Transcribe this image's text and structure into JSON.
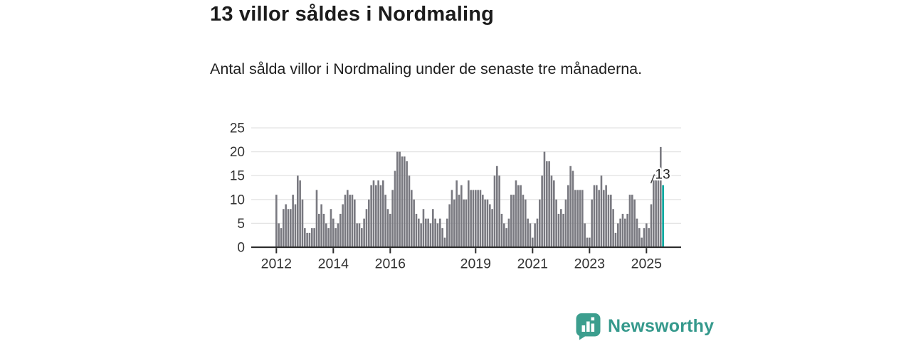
{
  "header": {
    "title": "13 villor såldes i Nordmaling",
    "subtitle": "Antal sålda villor i Nordmaling under de senaste tre månaderna."
  },
  "chart_data": {
    "type": "bar",
    "title": "13 villor såldes i Nordmaling",
    "subtitle": "Antal sålda villor i Nordmaling under de senaste tre månaderna.",
    "x_unit": "month",
    "x_range_note": "monthly bars Jan 2012 - Aug 2025, each bar = villas sold in trailing three months",
    "values": [
      11,
      5,
      4,
      8,
      9,
      8,
      8,
      11,
      9,
      15,
      14,
      10,
      4,
      3,
      3,
      4,
      4,
      12,
      7,
      9,
      7,
      5,
      4,
      8,
      6,
      4,
      5,
      7,
      9,
      11,
      12,
      11,
      11,
      10,
      5,
      5,
      4,
      6,
      8,
      10,
      13,
      14,
      13,
      14,
      13,
      14,
      11,
      8,
      7,
      12,
      16,
      20,
      20,
      19,
      19,
      18,
      15,
      12,
      10,
      7,
      6,
      5,
      8,
      6,
      6,
      5,
      8,
      6,
      5,
      6,
      4,
      2,
      6,
      9,
      12,
      10,
      14,
      11,
      13,
      10,
      10,
      14,
      12,
      12,
      12,
      12,
      12,
      11,
      10,
      10,
      9,
      8,
      15,
      17,
      15,
      7,
      5,
      4,
      6,
      11,
      11,
      14,
      13,
      13,
      11,
      10,
      6,
      5,
      2,
      5,
      6,
      10,
      15,
      20,
      18,
      18,
      15,
      14,
      10,
      7,
      8,
      7,
      10,
      13,
      17,
      16,
      12,
      12,
      12,
      12,
      5,
      2,
      2,
      10,
      13,
      13,
      12,
      15,
      12,
      13,
      11,
      11,
      8,
      3,
      5,
      6,
      7,
      6,
      7,
      11,
      11,
      10,
      6,
      4,
      2,
      4,
      5,
      4,
      9,
      14,
      15,
      14,
      21,
      13
    ],
    "x_tick_labels": [
      "2012",
      "2014",
      "2016",
      "2019",
      "2021",
      "2023",
      "2025"
    ],
    "x_tick_indices": [
      0,
      24,
      48,
      84,
      108,
      132,
      156
    ],
    "y_ticks": [
      0,
      5,
      10,
      15,
      20,
      25
    ],
    "ylim": [
      0,
      25
    ],
    "grid": true,
    "legend": "none",
    "annotation": {
      "text": "13",
      "value": 13,
      "target": "last-bar"
    },
    "colors": {
      "bar": "#797980",
      "highlight": "#00a49b",
      "axis": "#2e2e2e",
      "grid": "#e4e4e4",
      "tick_text": "#333333",
      "annotation_text": "#222222"
    }
  },
  "footer": {
    "brand": "Newsworthy",
    "brand_color": "#35998c",
    "icon_color": "#3c9e8e"
  }
}
